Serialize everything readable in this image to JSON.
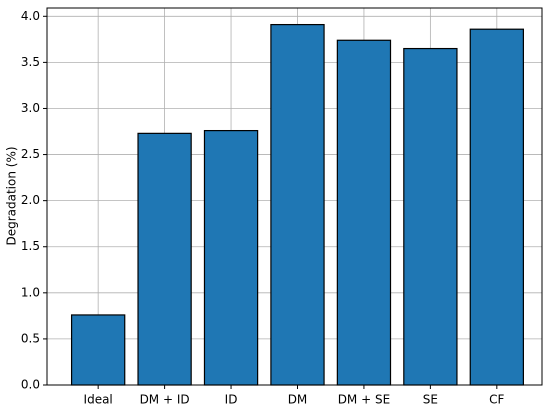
{
  "chart_data": {
    "type": "bar",
    "y_label": "Degradation (%)",
    "categories": [
      "Ideal",
      "DM + ID",
      "ID",
      "DM",
      "DM + SE",
      "SE",
      "CF"
    ],
    "values": [
      0.76,
      2.73,
      2.76,
      3.91,
      3.74,
      3.65,
      3.86
    ],
    "color": "#1f77b4",
    "ylim": [
      0,
      4.09
    ],
    "yticks": [
      {
        "value": 0,
        "label": "0.0"
      },
      0.5,
      {
        "value": 1,
        "label": "1.0"
      },
      1.5,
      {
        "value": 2,
        "label": "2.0"
      },
      2.5,
      {
        "value": 3,
        "label": "3.0"
      },
      3.5,
      {
        "value": 4,
        "label": "4.0"
      }
    ],
    "grid": true
  }
}
